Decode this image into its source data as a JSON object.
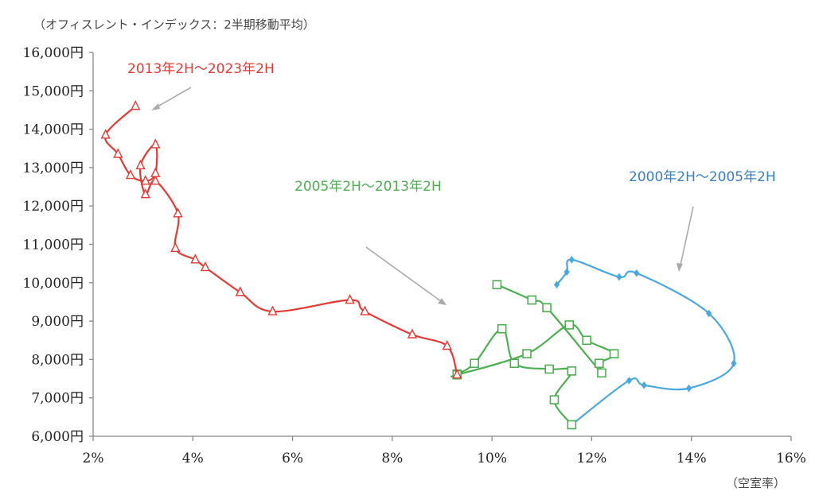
{
  "chart_data": {
    "type": "line",
    "subtitle": "（オフィスレント・インデックス：2半期移動平均）",
    "xlabel": "（空室率）",
    "ylabel": "",
    "x_format": "percent",
    "xlim": [
      2,
      16
    ],
    "ylim": [
      6000,
      16000
    ],
    "x_ticks": [
      2,
      4,
      6,
      8,
      10,
      12,
      14,
      16
    ],
    "x_tick_labels": [
      "2%",
      "4%",
      "6%",
      "8%",
      "10%",
      "12%",
      "14%",
      "16%"
    ],
    "y_ticks": [
      6000,
      7000,
      8000,
      9000,
      10000,
      11000,
      12000,
      13000,
      14000,
      15000,
      16000
    ],
    "y_tick_labels": [
      "6,000円",
      "7,000円",
      "8,000円",
      "9,000円",
      "10,000円",
      "11,000円",
      "12,000円",
      "13,000円",
      "14,000円",
      "15,000円",
      "16,000円"
    ],
    "series": [
      {
        "name": "2000年2H～2005年2H",
        "color": "#4aa8e0",
        "marker": "diamond",
        "points": [
          [
            11.3,
            9950
          ],
          [
            11.5,
            10280
          ],
          [
            11.6,
            10600
          ],
          [
            12.55,
            10150
          ],
          [
            12.9,
            10250
          ],
          [
            14.35,
            9200
          ],
          [
            14.85,
            7900
          ],
          [
            13.95,
            7250
          ],
          [
            13.05,
            7330
          ],
          [
            12.75,
            7450
          ],
          [
            11.6,
            6300
          ]
        ]
      },
      {
        "name": "2005年2H～2013年2H",
        "color": "#4caf50",
        "marker": "square",
        "points": [
          [
            11.6,
            6300
          ],
          [
            11.25,
            6950
          ],
          [
            11.6,
            7700
          ],
          [
            11.15,
            7750
          ],
          [
            10.45,
            7900
          ],
          [
            10.2,
            8800
          ],
          [
            9.65,
            7900
          ],
          [
            9.3,
            7620
          ],
          [
            9.3,
            7600
          ],
          [
            10.7,
            8150
          ],
          [
            11.55,
            8900
          ],
          [
            11.9,
            8500
          ],
          [
            12.45,
            8150
          ],
          [
            12.15,
            7900
          ],
          [
            12.2,
            7650
          ],
          [
            11.1,
            9350
          ],
          [
            10.8,
            9550
          ],
          [
            10.1,
            9950
          ]
        ]
      },
      {
        "name": "2013年2H～2023年2H",
        "color": "#e53935",
        "marker": "triangle",
        "points": [
          [
            9.3,
            7600
          ],
          [
            9.1,
            8350
          ],
          [
            8.4,
            8650
          ],
          [
            7.45,
            9250
          ],
          [
            7.15,
            9550
          ],
          [
            5.6,
            9250
          ],
          [
            4.95,
            9750
          ],
          [
            4.25,
            10400
          ],
          [
            4.05,
            10600
          ],
          [
            3.65,
            10900
          ],
          [
            3.7,
            11800
          ],
          [
            3.25,
            12650
          ],
          [
            3.05,
            12300
          ],
          [
            2.95,
            13050
          ],
          [
            3.25,
            13600
          ],
          [
            3.25,
            12850
          ],
          [
            3.05,
            12650
          ],
          [
            2.75,
            12800
          ],
          [
            2.5,
            13350
          ],
          [
            2.25,
            13850
          ],
          [
            2.85,
            14600
          ]
        ]
      }
    ],
    "annotations": [
      {
        "label": "2013年2H～2023年2H",
        "color": "#e53935"
      },
      {
        "label": "2005年2H～2013年2H",
        "color": "#4caf50"
      },
      {
        "label": "2000年2H～2005年2H",
        "color": "#3a7fc6"
      }
    ]
  }
}
